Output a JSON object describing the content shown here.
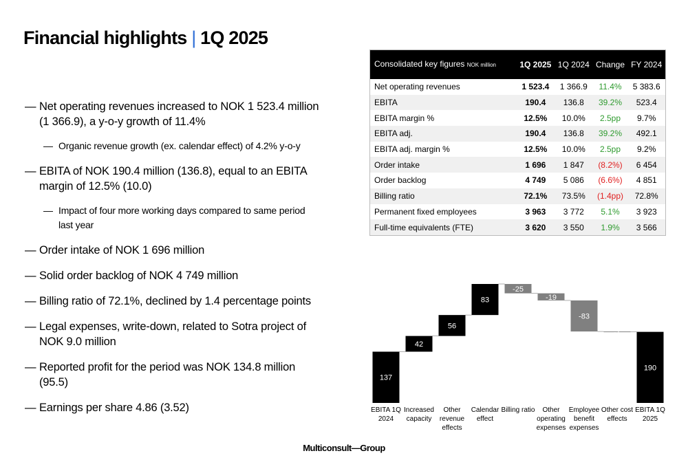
{
  "title": {
    "main": "Financial highlights",
    "separator": "|",
    "period": "1Q 2025"
  },
  "bullets": [
    {
      "text": "Net operating revenues increased to NOK 1 523.4 million (1 366.9), a y-o-y growth of 11.4%",
      "sub": [
        "Organic revenue growth (ex. calendar effect) of 4.2% y-o-y"
      ]
    },
    {
      "text": "EBITA of NOK 190.4 million (136.8), equal to an EBITA margin of 12.5% (10.0)",
      "sub": [
        "Impact of four more working days compared to same period last year"
      ]
    },
    {
      "text": "Order intake of NOK 1 696 million"
    },
    {
      "text": "Solid order backlog of NOK 4 749 million"
    },
    {
      "text": "Billing ratio of 72.1%, declined by 1.4 percentage points"
    },
    {
      "text": "Legal expenses, write-down, related to Sotra project of NOK 9.0 million"
    },
    {
      "text": "Reported profit for the period was NOK 134.8 million (95.5)"
    },
    {
      "text": "Earnings per share 4.86 (3.52)"
    }
  ],
  "table": {
    "header": {
      "title": "Consolidated key figures",
      "unit": "NOK million",
      "columns": [
        "1Q 2025",
        "1Q 2024",
        "Change",
        "FY 2024"
      ]
    },
    "rows": [
      [
        "Net operating revenues",
        "1 523.4",
        "1 366.9",
        "11.4%",
        "5 383.6"
      ],
      [
        "EBITA",
        "190.4",
        "136.8",
        "39.2%",
        "523.4"
      ],
      [
        "EBITA margin %",
        "12.5%",
        "10.0%",
        "2.5pp",
        "9.7%"
      ],
      [
        "EBITA adj.",
        "190.4",
        "136.8",
        "39.2%",
        "492.1"
      ],
      [
        "EBITA adj. margin %",
        "12.5%",
        "10.0%",
        "2.5pp",
        "9.2%"
      ],
      [
        "Order intake",
        "1 696",
        "1 847",
        "(8.2%)",
        "6 454"
      ],
      [
        "Order backlog",
        "4 749",
        "5 086",
        "(6.6%)",
        "4 851"
      ],
      [
        "Billing ratio",
        "72.1%",
        "73.5%",
        "(1.4pp)",
        "72.8%"
      ],
      [
        "Permanent fixed employees",
        "3 963",
        "3 772",
        "5.1%",
        "3 923"
      ],
      [
        "Full-time equivalents (FTE)",
        "3 620",
        "3 550",
        "1.9%",
        "3 566"
      ]
    ],
    "change_colors": [
      "#2e9a2e",
      "#2e9a2e",
      "#2e9a2e",
      "#2e9a2e",
      "#2e9a2e",
      "#e02020",
      "#e02020",
      "#e02020",
      "#2e9a2e",
      "#2e9a2e"
    ]
  },
  "chart_data": {
    "type": "waterfall",
    "categories": [
      "EBITA 1Q 2024",
      "Increased capacity",
      "Other revenue effects",
      "Calendar effect",
      "Billing ratio",
      "Other operating expenses",
      "Employee benefit expenses",
      "Other cost effects",
      "EBITA 1Q 2025"
    ],
    "values": [
      137,
      42,
      56,
      83,
      -25,
      -19,
      -83,
      -1,
      190
    ],
    "color_total": "#000000",
    "color_increase": "#000000",
    "color_decrease": "#808080"
  },
  "footer": "Multiconsult—Group"
}
